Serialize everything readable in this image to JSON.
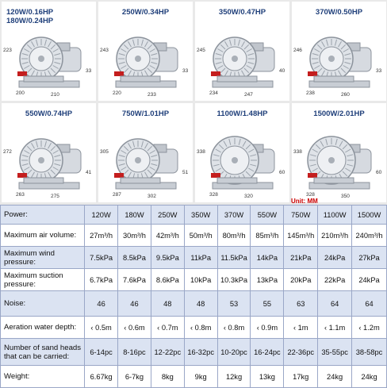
{
  "products": [
    {
      "label": "120W/0.16HP\n180W/0.24HP",
      "dims": [
        "223",
        "200",
        "210",
        "33"
      ]
    },
    {
      "label": "250W/0.34HP",
      "dims": [
        "243",
        "220",
        "233",
        "33"
      ]
    },
    {
      "label": "350W/0.47HP",
      "dims": [
        "245",
        "234",
        "247",
        "40"
      ]
    },
    {
      "label": "370W/0.50HP",
      "dims": [
        "246",
        "238",
        "260",
        "33"
      ]
    },
    {
      "label": "550W/0.74HP",
      "dims": [
        "272",
        "263",
        "275",
        "41"
      ]
    },
    {
      "label": "750W/1.01HP",
      "dims": [
        "305",
        "287",
        "302",
        "51"
      ]
    },
    {
      "label": "1100W/1.48HP",
      "dims": [
        "338",
        "328",
        "320",
        "60"
      ]
    },
    {
      "label": "1500W/2.01HP",
      "dims": [
        "338",
        "328",
        "350",
        "60"
      ]
    }
  ],
  "unit_note": "Unit: MM",
  "table": {
    "rows": [
      {
        "label": "Power:",
        "values": [
          "120W",
          "180W",
          "250W",
          "350W",
          "370W",
          "550W",
          "750W",
          "1100W",
          "1500W"
        ]
      },
      {
        "label": "Maximum air volume:",
        "values": [
          "27m³/h",
          "30m³/h",
          "42m³/h",
          "50m³/h",
          "80m³/h",
          "85m³/h",
          "145m³/h",
          "210m³/h",
          "240m³/h"
        ]
      },
      {
        "label": "Maximum wind pressure:",
        "values": [
          "7.5kPa",
          "8.5kPa",
          "9.5kPa",
          "11kPa",
          "11.5kPa",
          "14kPa",
          "21kPa",
          "24kPa",
          "27kPa"
        ]
      },
      {
        "label": "Maximum suction pressure:",
        "values": [
          "6.7kPa",
          "7.6kPa",
          "8.6kPa",
          "10kPa",
          "10.3kPa",
          "13kPa",
          "20kPa",
          "22kPa",
          "24kPa"
        ]
      },
      {
        "label": "Noise:",
        "values": [
          "46",
          "46",
          "48",
          "48",
          "53",
          "55",
          "63",
          "64",
          "64"
        ]
      },
      {
        "label": "Aeration water depth:",
        "values": [
          "‹ 0.5m",
          "‹ 0.6m",
          "‹ 0.7m",
          "‹ 0.8m",
          "‹ 0.8m",
          "‹ 0.9m",
          "‹ 1m",
          "‹ 1.1m",
          "‹ 1.2m"
        ]
      },
      {
        "label": "Number of sand heads that can be carried:",
        "values": [
          "6-14pc",
          "8-16pc",
          "12-22pc",
          "16-32pc",
          "10-20pc",
          "16-24pc",
          "22-36pc",
          "35-55pc",
          "38-58pc"
        ]
      },
      {
        "label": "Weight:",
        "values": [
          "6.67kg",
          "6-7kg",
          "8kg",
          "9kg",
          "12kg",
          "13kg",
          "17kg",
          "24kg",
          "24kg"
        ]
      }
    ]
  }
}
